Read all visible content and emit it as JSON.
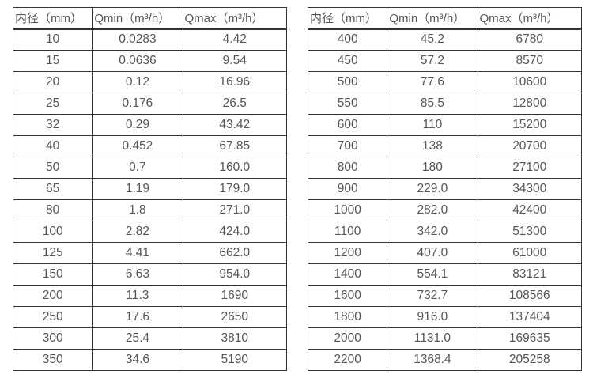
{
  "page": {
    "background": "#ffffff",
    "border_color": "#333333",
    "text_color": "#555555"
  },
  "tables": [
    {
      "name": "flow-rate-table-small-diameters",
      "headers": [
        "内径（mm）",
        "Qmin（m³/h）",
        "Qmax（m³/h）"
      ],
      "rows": [
        [
          "10",
          "0.0283",
          "4.42"
        ],
        [
          "15",
          "0.0636",
          "9.54"
        ],
        [
          "20",
          "0.12",
          "16.96"
        ],
        [
          "25",
          "0.176",
          "26.5"
        ],
        [
          "32",
          "0.29",
          "43.42"
        ],
        [
          "40",
          "0.452",
          "67.85"
        ],
        [
          "50",
          "0.7",
          "160.0"
        ],
        [
          "65",
          "1.19",
          "179.0"
        ],
        [
          "80",
          "1.8",
          "271.0"
        ],
        [
          "100",
          "2.82",
          "424.0"
        ],
        [
          "125",
          "4.41",
          "662.0"
        ],
        [
          "150",
          "6.63",
          "954.0"
        ],
        [
          "200",
          "11.3",
          "1690"
        ],
        [
          "250",
          "17.6",
          "2650"
        ],
        [
          "300",
          "25.4",
          "3810"
        ],
        [
          "350",
          "34.6",
          "5190"
        ]
      ]
    },
    {
      "name": "flow-rate-table-large-diameters",
      "headers": [
        "内径（mm）",
        "Qmin（m³/h）",
        "Qmax（m³/h）"
      ],
      "rows": [
        [
          "400",
          "45.2",
          "6780"
        ],
        [
          "450",
          "57.2",
          "8570"
        ],
        [
          "500",
          "77.6",
          "10600"
        ],
        [
          "550",
          "85.5",
          "12800"
        ],
        [
          "600",
          "110",
          "15200"
        ],
        [
          "700",
          "138",
          "20700"
        ],
        [
          "800",
          "180",
          "27100"
        ],
        [
          "900",
          "229.0",
          "34300"
        ],
        [
          "1000",
          "282.0",
          "42400"
        ],
        [
          "1100",
          "342.0",
          "51300"
        ],
        [
          "1200",
          "407.0",
          "61000"
        ],
        [
          "1400",
          "554.1",
          "83121"
        ],
        [
          "1600",
          "732.7",
          "108566"
        ],
        [
          "1800",
          "916.0",
          "137404"
        ],
        [
          "2000",
          "1131.0",
          "169635"
        ],
        [
          "2200",
          "1368.4",
          "205258"
        ]
      ]
    }
  ],
  "chart_data": {
    "type": "table",
    "title": "",
    "columns": [
      "内径（mm）",
      "Qmin（m³/h）",
      "Qmax（m³/h）"
    ],
    "series": [
      {
        "name": "内径(mm)",
        "values": [
          10,
          15,
          20,
          25,
          32,
          40,
          50,
          65,
          80,
          100,
          125,
          150,
          200,
          250,
          300,
          350,
          400,
          450,
          500,
          550,
          600,
          700,
          800,
          900,
          1000,
          1100,
          1200,
          1400,
          1600,
          1800,
          2000,
          2200
        ]
      },
      {
        "name": "Qmin(m³/h)",
        "values": [
          0.0283,
          0.0636,
          0.12,
          0.176,
          0.29,
          0.452,
          0.7,
          1.19,
          1.8,
          2.82,
          4.41,
          6.63,
          11.3,
          17.6,
          25.4,
          34.6,
          45.2,
          57.2,
          77.6,
          85.5,
          110,
          138,
          180,
          229.0,
          282.0,
          342.0,
          407.0,
          554.1,
          732.7,
          916.0,
          1131.0,
          1368.4
        ]
      },
      {
        "name": "Qmax(m³/h)",
        "values": [
          4.42,
          9.54,
          16.96,
          26.5,
          43.42,
          67.85,
          160.0,
          179.0,
          271.0,
          424.0,
          662.0,
          954.0,
          1690,
          2650,
          3810,
          5190,
          6780,
          8570,
          10600,
          12800,
          15200,
          20700,
          27100,
          34300,
          42400,
          51300,
          61000,
          83121,
          108566,
          137404,
          169635,
          205258
        ]
      }
    ]
  }
}
